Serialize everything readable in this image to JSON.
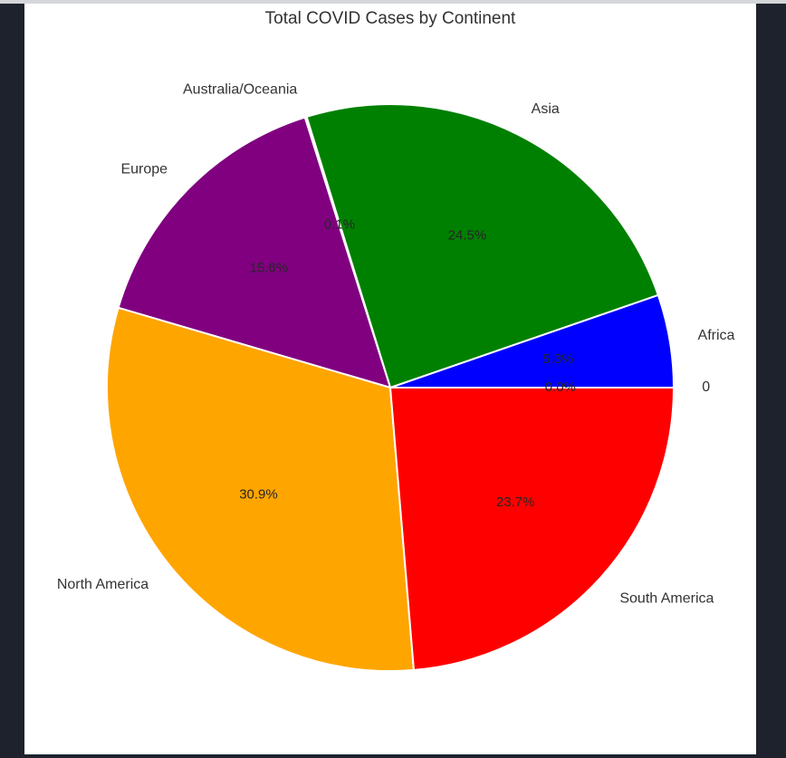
{
  "chart_data": {
    "type": "pie",
    "title": "Total COVID Cases by Continent",
    "slices": [
      {
        "name": "0",
        "value": 0.0,
        "pct_label": "0.0%",
        "color": "#0000ff"
      },
      {
        "name": "Africa",
        "value": 5.3,
        "pct_label": "5.3%",
        "color": "#0000ff"
      },
      {
        "name": "Asia",
        "value": 24.5,
        "pct_label": "24.5%",
        "color": "#008000"
      },
      {
        "name": "Australia/Oceania",
        "value": 0.1,
        "pct_label": "0.1%",
        "color": "#008000"
      },
      {
        "name": "Europe",
        "value": 15.6,
        "pct_label": "15.6%",
        "color": "#800080"
      },
      {
        "name": "North America",
        "value": 30.9,
        "pct_label": "30.9%",
        "color": "#ffa500"
      },
      {
        "name": "South America",
        "value": 23.7,
        "pct_label": "23.7%",
        "color": "#ff0000"
      }
    ],
    "start_angle": 0,
    "direction": "counterclockwise",
    "legend": "none"
  }
}
